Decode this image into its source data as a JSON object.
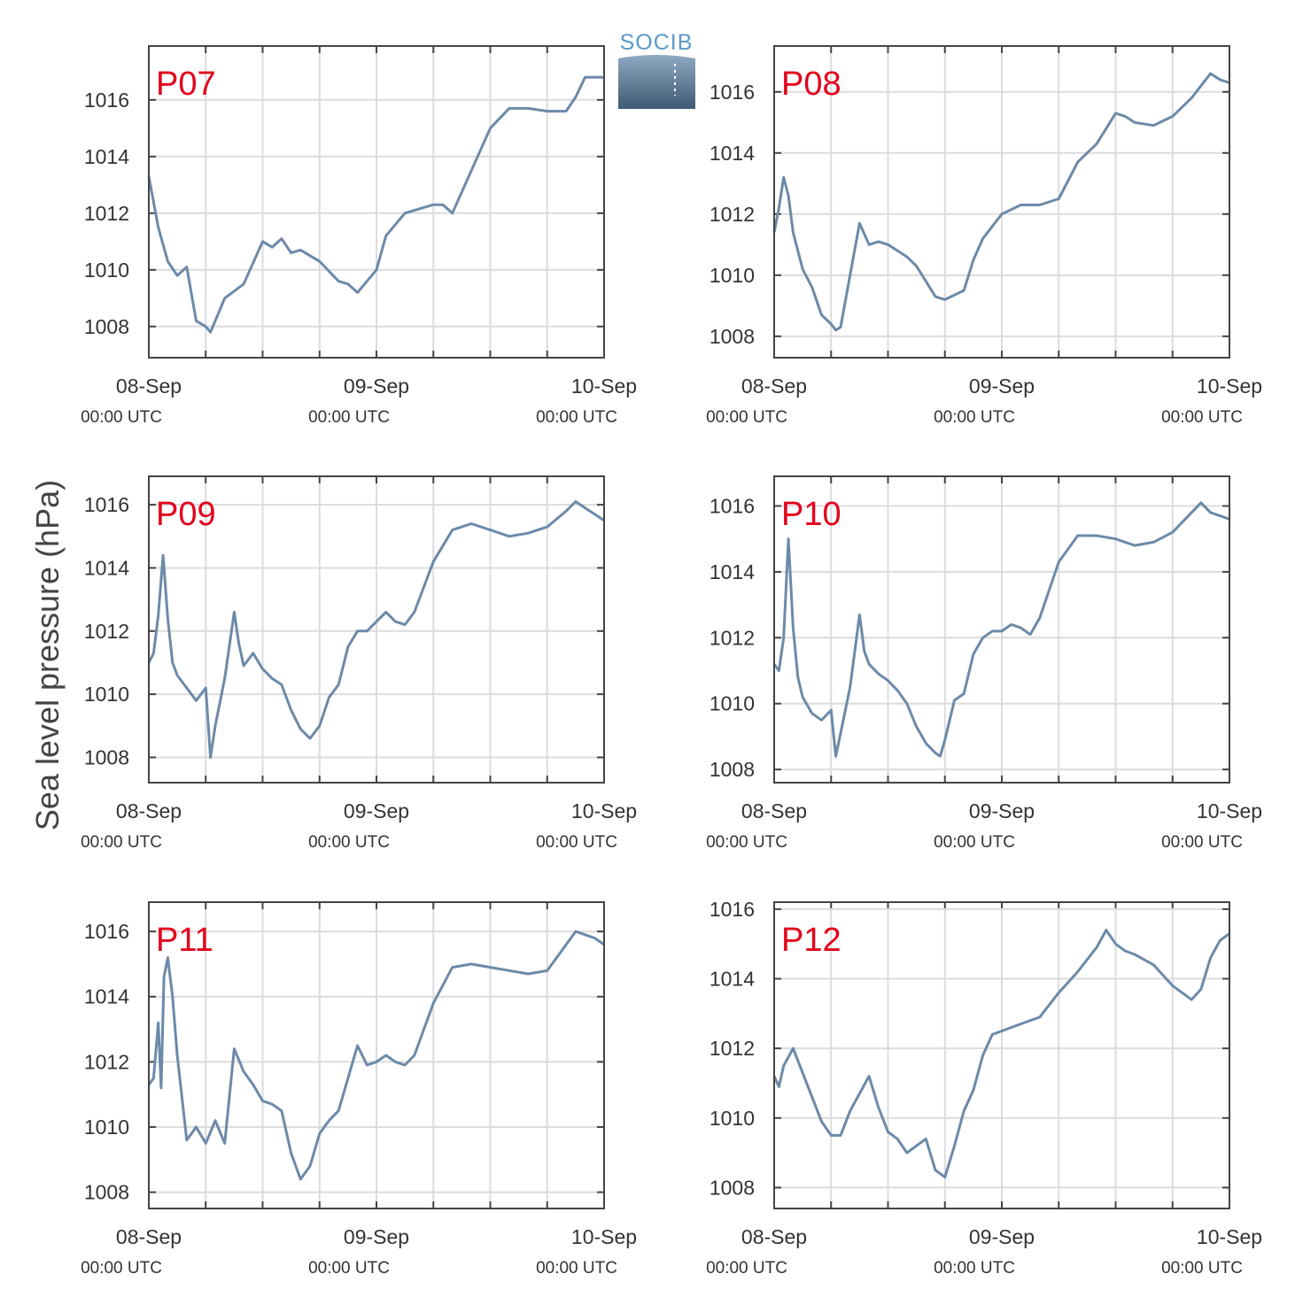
{
  "figure": {
    "ylabel": "Sea level pressure (hPa)",
    "logo_text": "SOCIB",
    "line_color": "#6c8aa8",
    "label_color": "#e3001b"
  },
  "chart_data": [
    {
      "type": "line",
      "name": "P07",
      "ylim": [
        1006.9,
        1017.9
      ],
      "yticks": [
        1008,
        1010,
        1012,
        1014,
        1016
      ],
      "x_tick_dates": [
        "08-Sep",
        "09-Sep",
        "10-Sep"
      ],
      "x_tick_times": [
        "00:00 UTC",
        "00:00 UTC",
        "00:00 UTC"
      ],
      "x_hours": [
        0,
        1,
        2,
        3,
        4,
        5,
        6,
        6.5,
        7,
        8,
        10,
        12,
        13,
        14,
        15,
        16,
        18,
        20,
        21,
        22,
        24,
        25,
        27,
        28,
        30,
        31,
        32,
        34,
        36,
        38,
        40,
        42,
        44,
        45,
        46,
        47,
        48
      ],
      "y": [
        1013.3,
        1011.5,
        1010.3,
        1009.8,
        1010.1,
        1008.2,
        1008.0,
        1007.8,
        1008.2,
        1009.0,
        1009.5,
        1011.0,
        1010.8,
        1011.1,
        1010.6,
        1010.7,
        1010.3,
        1009.6,
        1009.5,
        1009.2,
        1010.0,
        1011.2,
        1012.0,
        1012.1,
        1012.3,
        1012.3,
        1012.0,
        1013.5,
        1015.0,
        1015.7,
        1015.7,
        1015.6,
        1015.6,
        1016.1,
        1016.8,
        1016.8,
        1016.8
      ]
    },
    {
      "type": "line",
      "name": "P08",
      "ylim": [
        1007.3,
        1017.5
      ],
      "yticks": [
        1008,
        1010,
        1012,
        1014,
        1016
      ],
      "x_tick_dates": [
        "08-Sep",
        "09-Sep",
        "10-Sep"
      ],
      "x_tick_times": [
        "00:00 UTC",
        "00:00 UTC",
        "00:00 UTC"
      ],
      "x_hours": [
        0,
        0.5,
        1,
        1.5,
        2,
        3,
        4,
        5,
        6,
        6.5,
        7,
        8,
        9,
        10,
        11,
        12,
        14,
        15,
        16,
        17,
        18,
        20,
        21,
        22,
        24,
        26,
        28,
        30,
        32,
        34,
        36,
        37,
        38,
        40,
        42,
        44,
        45,
        46,
        47,
        48
      ],
      "y": [
        1011.4,
        1012.2,
        1013.2,
        1012.6,
        1011.4,
        1010.2,
        1009.6,
        1008.7,
        1008.4,
        1008.2,
        1008.3,
        1010.0,
        1011.7,
        1011.0,
        1011.1,
        1011.0,
        1010.6,
        1010.3,
        1009.8,
        1009.3,
        1009.2,
        1009.5,
        1010.5,
        1011.2,
        1012.0,
        1012.3,
        1012.3,
        1012.5,
        1013.7,
        1014.3,
        1015.3,
        1015.2,
        1015.0,
        1014.9,
        1015.2,
        1015.8,
        1016.2,
        1016.6,
        1016.4,
        1016.3
      ]
    },
    {
      "type": "line",
      "name": "P09",
      "ylim": [
        1007.2,
        1016.9
      ],
      "yticks": [
        1008,
        1010,
        1012,
        1014,
        1016
      ],
      "x_tick_dates": [
        "08-Sep",
        "09-Sep",
        "10-Sep"
      ],
      "x_tick_times": [
        "00:00 UTC",
        "00:00 UTC",
        "00:00 UTC"
      ],
      "x_hours": [
        0,
        0.5,
        1,
        1.5,
        2,
        2.5,
        3,
        4,
        5,
        6,
        6.5,
        7,
        8,
        9,
        9.5,
        10,
        11,
        12,
        13,
        14,
        15,
        16,
        17,
        18,
        19,
        20,
        21,
        22,
        23,
        24,
        25,
        26,
        27,
        28,
        30,
        32,
        34,
        36,
        38,
        40,
        42,
        44,
        45,
        46,
        47,
        48
      ],
      "y": [
        1011.0,
        1011.3,
        1012.5,
        1014.4,
        1012.4,
        1011.0,
        1010.6,
        1010.2,
        1009.8,
        1010.2,
        1008.0,
        1009.0,
        1010.5,
        1012.6,
        1011.6,
        1010.9,
        1011.3,
        1010.8,
        1010.5,
        1010.3,
        1009.5,
        1008.9,
        1008.6,
        1009.0,
        1009.9,
        1010.3,
        1011.5,
        1012.0,
        1012.0,
        1012.3,
        1012.6,
        1012.3,
        1012.2,
        1012.6,
        1014.2,
        1015.2,
        1015.4,
        1015.2,
        1015.0,
        1015.1,
        1015.3,
        1015.8,
        1016.1,
        1015.9,
        1015.7,
        1015.5
      ]
    },
    {
      "type": "line",
      "name": "P10",
      "ylim": [
        1007.6,
        1016.9
      ],
      "yticks": [
        1008,
        1010,
        1012,
        1014,
        1016
      ],
      "x_tick_dates": [
        "08-Sep",
        "09-Sep",
        "10-Sep"
      ],
      "x_tick_times": [
        "00:00 UTC",
        "00:00 UTC",
        "00:00 UTC"
      ],
      "x_hours": [
        0,
        0.5,
        1,
        1.5,
        2,
        2.5,
        3,
        4,
        5,
        6,
        6.5,
        7,
        8,
        9,
        9.5,
        10,
        11,
        12,
        13,
        14,
        15,
        16,
        17,
        17.5,
        18,
        19,
        20,
        21,
        22,
        23,
        24,
        25,
        26,
        27,
        28,
        30,
        32,
        34,
        36,
        38,
        40,
        42,
        44,
        45,
        46,
        47,
        48
      ],
      "y": [
        1011.2,
        1011.0,
        1012.0,
        1015.0,
        1012.3,
        1010.8,
        1010.2,
        1009.7,
        1009.5,
        1009.8,
        1008.4,
        1009.1,
        1010.5,
        1012.7,
        1011.6,
        1011.2,
        1010.9,
        1010.7,
        1010.4,
        1010.0,
        1009.3,
        1008.8,
        1008.5,
        1008.4,
        1008.9,
        1010.1,
        1010.3,
        1011.5,
        1012.0,
        1012.2,
        1012.2,
        1012.4,
        1012.3,
        1012.1,
        1012.6,
        1014.3,
        1015.1,
        1015.1,
        1015.0,
        1014.8,
        1014.9,
        1015.2,
        1015.8,
        1016.1,
        1015.8,
        1015.7,
        1015.6
      ]
    },
    {
      "type": "line",
      "name": "P11",
      "ylim": [
        1007.5,
        1016.9
      ],
      "yticks": [
        1008,
        1010,
        1012,
        1014,
        1016
      ],
      "x_tick_dates": [
        "08-Sep",
        "09-Sep",
        "10-Sep"
      ],
      "x_tick_times": [
        "00:00 UTC",
        "00:00 UTC",
        "00:00 UTC"
      ],
      "x_hours": [
        0,
        0.5,
        1,
        1.3,
        1.6,
        2,
        2.5,
        3,
        4,
        5,
        6,
        7,
        8,
        9,
        10,
        11,
        12,
        13,
        14,
        15,
        16,
        17,
        18,
        19,
        20,
        21,
        22,
        23,
        24,
        25,
        26,
        27,
        28,
        30,
        32,
        34,
        36,
        38,
        40,
        42,
        44,
        45,
        46,
        47,
        48
      ],
      "y": [
        1011.3,
        1011.5,
        1013.2,
        1011.2,
        1014.6,
        1015.2,
        1014.0,
        1012.2,
        1009.6,
        1010.0,
        1009.5,
        1010.2,
        1009.5,
        1012.4,
        1011.7,
        1011.3,
        1010.8,
        1010.7,
        1010.5,
        1009.2,
        1008.4,
        1008.8,
        1009.8,
        1010.2,
        1010.5,
        1011.5,
        1012.5,
        1011.9,
        1012.0,
        1012.2,
        1012.0,
        1011.9,
        1012.2,
        1013.8,
        1014.9,
        1015.0,
        1014.9,
        1014.8,
        1014.7,
        1014.8,
        1015.6,
        1016.0,
        1015.9,
        1015.8,
        1015.6
      ]
    },
    {
      "type": "line",
      "name": "P12",
      "ylim": [
        1007.4,
        1016.2
      ],
      "yticks": [
        1008,
        1010,
        1012,
        1014,
        1016
      ],
      "x_tick_dates": [
        "08-Sep",
        "09-Sep",
        "10-Sep"
      ],
      "x_tick_times": [
        "00:00 UTC",
        "00:00 UTC",
        "00:00 UTC"
      ],
      "x_hours": [
        0,
        0.5,
        1,
        2,
        3,
        4,
        5,
        6,
        7,
        8,
        9,
        10,
        11,
        12,
        13,
        14,
        15,
        16,
        17,
        18,
        19,
        20,
        21,
        22,
        23,
        24,
        25,
        26,
        28,
        30,
        32,
        34,
        35,
        36,
        37,
        38,
        40,
        42,
        44,
        45,
        46,
        47,
        48
      ],
      "y": [
        1011.2,
        1010.9,
        1011.5,
        1012.0,
        1011.3,
        1010.6,
        1009.9,
        1009.5,
        1009.5,
        1010.2,
        1010.7,
        1011.2,
        1010.3,
        1009.6,
        1009.4,
        1009.0,
        1009.2,
        1009.4,
        1008.5,
        1008.3,
        1009.2,
        1010.2,
        1010.8,
        1011.8,
        1012.4,
        1012.5,
        1012.6,
        1012.7,
        1012.9,
        1013.6,
        1014.2,
        1014.9,
        1015.4,
        1015.0,
        1014.8,
        1014.7,
        1014.4,
        1013.8,
        1013.4,
        1013.7,
        1014.6,
        1015.1,
        1015.3
      ]
    }
  ]
}
